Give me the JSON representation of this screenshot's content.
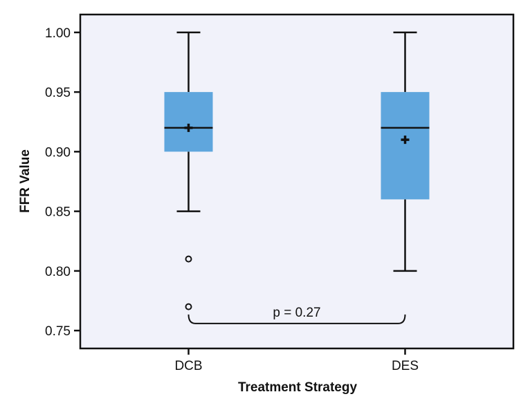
{
  "chart_data": {
    "type": "box",
    "xlabel": "Treatment Strategy",
    "ylabel": "FFR Value",
    "ylim": [
      0.735,
      1.015
    ],
    "yticks": [
      0.75,
      0.8,
      0.85,
      0.9,
      0.95,
      1.0
    ],
    "ytick_labels": [
      "0.75",
      "0.80",
      "0.85",
      "0.90",
      "0.95",
      "1.00"
    ],
    "categories": [
      "DCB",
      "DES"
    ],
    "grid": false,
    "boxes": [
      {
        "category": "DCB",
        "whisker_low": 0.85,
        "q1": 0.9,
        "median": 0.92,
        "q3": 0.95,
        "whisker_high": 1.0,
        "mean": 0.92,
        "outliers": [
          0.81,
          0.77
        ]
      },
      {
        "category": "DES",
        "whisker_low": 0.8,
        "q1": 0.86,
        "median": 0.92,
        "q3": 0.95,
        "whisker_high": 1.0,
        "mean": 0.91,
        "outliers": []
      }
    ],
    "annotation": {
      "text": "p = 0.27",
      "between": [
        "DCB",
        "DES"
      ],
      "y": 0.76
    },
    "colors": {
      "box_fill": "#5fa6dd",
      "plot_background": "#f1f2fa",
      "line": "#111111"
    }
  }
}
